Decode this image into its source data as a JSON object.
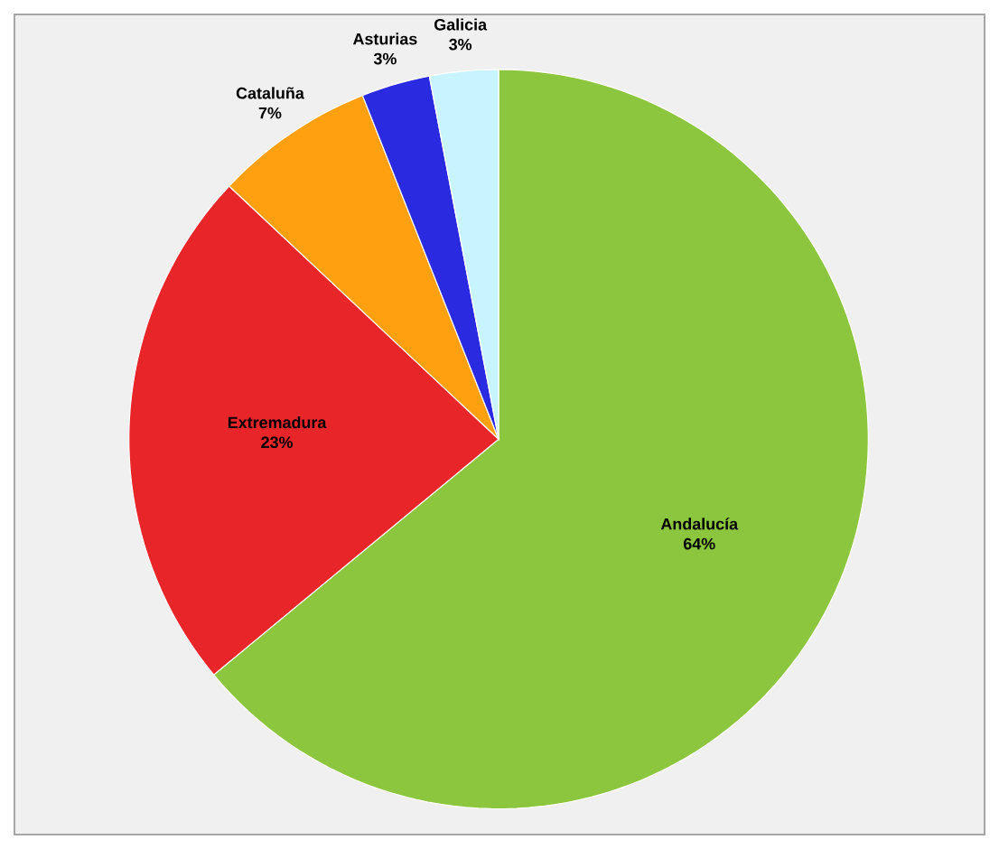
{
  "chart_data": {
    "type": "pie",
    "categories": [
      "Andalucía",
      "Extremadura",
      "Cataluña",
      "Asturias",
      "Galicia"
    ],
    "values": [
      64,
      23,
      7,
      3,
      3
    ],
    "value_labels": [
      "64%",
      "23%",
      "7%",
      "3%",
      "3%"
    ],
    "colors": [
      "#8cc63e",
      "#e8262a",
      "#ffa010",
      "#2a2ae0",
      "#c8f4ff"
    ]
  }
}
